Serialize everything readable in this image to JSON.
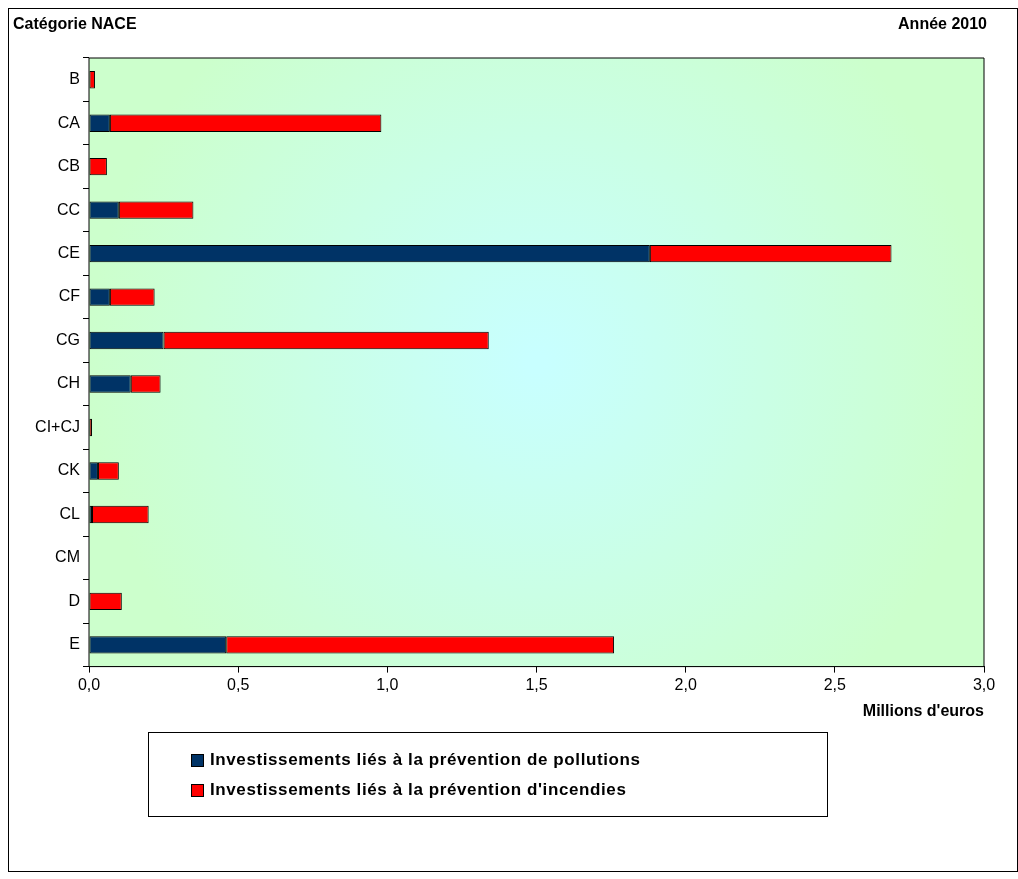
{
  "chart_data": {
    "type": "bar",
    "orientation": "horizontal",
    "stacked": true,
    "title": "Année 2010",
    "ylabel": "Catégorie NACE",
    "xlabel": "Millions d'euros",
    "categories": [
      "B",
      "CA",
      "CB",
      "CC",
      "CE",
      "CF",
      "CG",
      "CH",
      "CI+CJ",
      "CK",
      "CL",
      "CM",
      "D",
      "E"
    ],
    "series": [
      {
        "name": "Investissements liés à la prévention de pollutions",
        "color": "#003366",
        "values": [
          0,
          0.07,
          0,
          0.1,
          1.88,
          0.07,
          0.25,
          0.14,
          0,
          0.03,
          0.01,
          0,
          0,
          0.46
        ]
      },
      {
        "name": "Investissements liés à la prévention d'incendies",
        "color": "#ff0000",
        "values": [
          0.02,
          0.91,
          0.06,
          0.25,
          0.81,
          0.15,
          1.09,
          0.1,
          0.01,
          0.07,
          0.19,
          0,
          0.11,
          1.3
        ]
      }
    ],
    "xlim": [
      0,
      3
    ],
    "xticks": [
      {
        "value": 0,
        "label": "0,0"
      },
      {
        "value": 0.5,
        "label": "0,5"
      },
      {
        "value": 1,
        "label": "1,0"
      },
      {
        "value": 1.5,
        "label": "1,5"
      },
      {
        "value": 2,
        "label": "2,0"
      },
      {
        "value": 2.5,
        "label": "2,5"
      },
      {
        "value": 3,
        "label": "3,0"
      }
    ],
    "legend": "bottom"
  }
}
